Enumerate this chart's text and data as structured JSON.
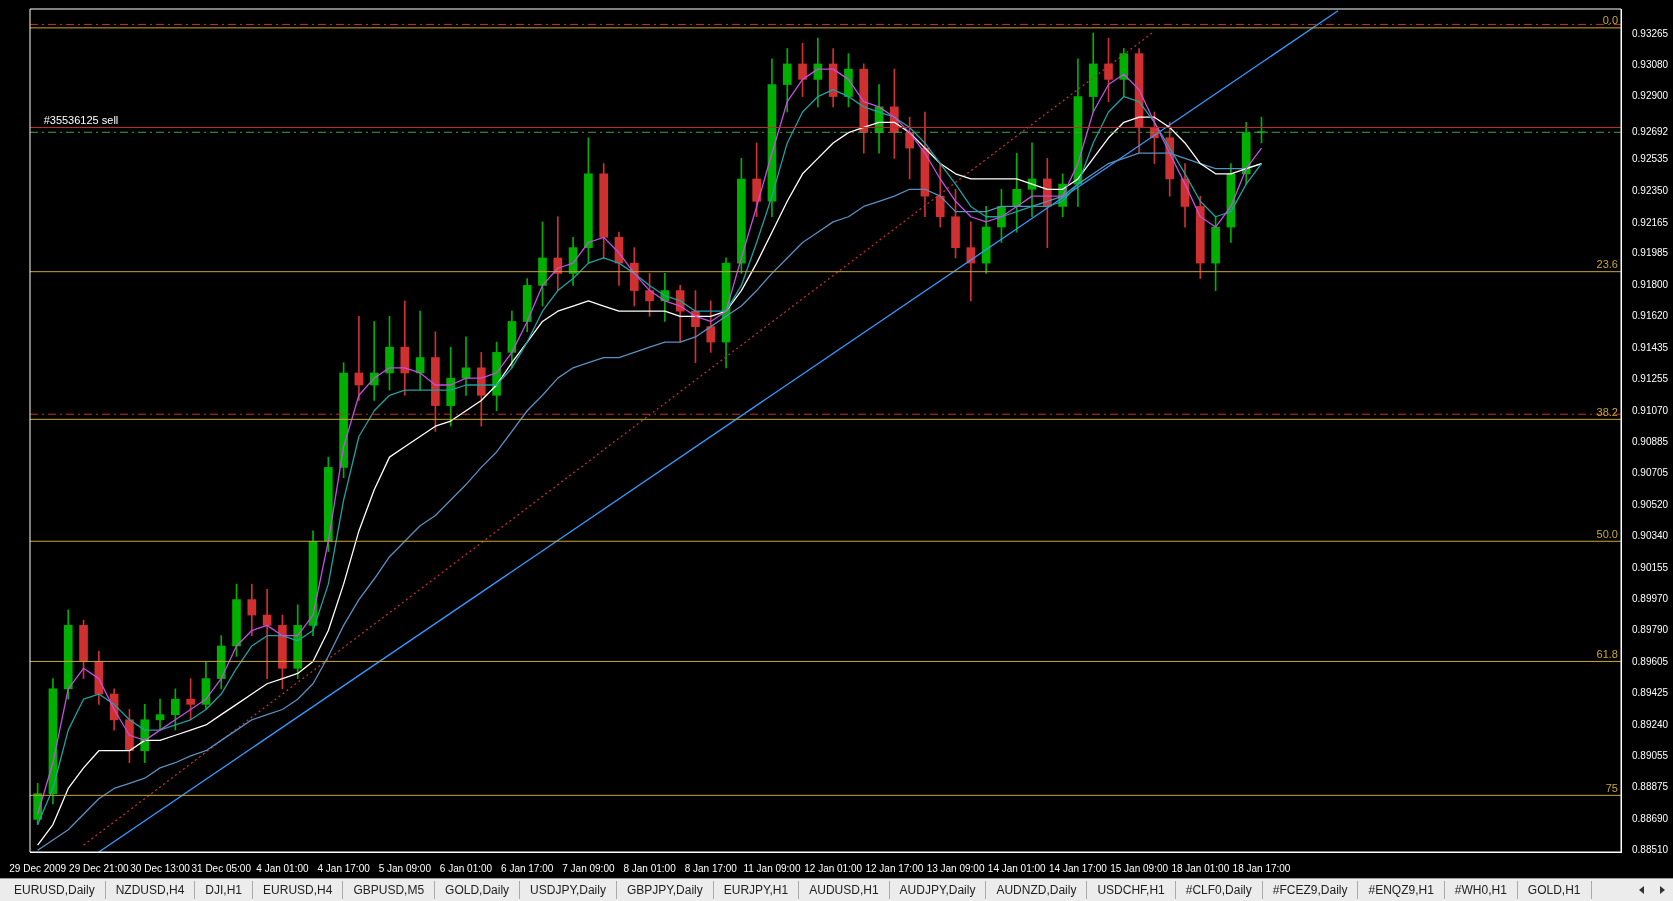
{
  "chart_data": {
    "type": "candlestick",
    "categories": [
      "29 Dec 2009",
      null,
      null,
      null,
      "29 Dec 21:00",
      null,
      null,
      null,
      "30 Dec 13:00",
      null,
      null,
      null,
      "31 Dec 05:00",
      null,
      null,
      null,
      "4 Jan 01:00",
      null,
      null,
      null,
      "4 Jan 17:00",
      null,
      null,
      null,
      "5 Jan 09:00",
      null,
      null,
      null,
      "6 Jan 01:00",
      null,
      null,
      null,
      "6 Jan 17:00",
      null,
      null,
      null,
      "7 Jan 09:00",
      null,
      null,
      null,
      "8 Jan 01:00",
      null,
      null,
      null,
      "8 Jan 17:00",
      null,
      null,
      null,
      "11 Jan 09:00",
      null,
      null,
      null,
      "12 Jan 01:00",
      null,
      null,
      null,
      "12 Jan 17:00",
      null,
      null,
      null,
      "13 Jan 09:00",
      null,
      null,
      null,
      "14 Jan 01:00",
      null,
      null,
      null,
      "14 Jan 17:00",
      null,
      null,
      null,
      "15 Jan 09:00",
      null,
      null,
      null,
      "18 Jan 01:00",
      null,
      null,
      null,
      "18 Jan 17:00",
      null,
      null,
      null,
      null,
      null,
      null,
      null,
      null,
      null,
      null,
      null,
      null,
      null,
      null,
      null,
      null,
      null,
      null,
      null,
      null,
      null,
      null,
      null
    ],
    "ohlc": [
      [
        0.8869,
        0.889,
        0.8866,
        0.8884
      ],
      [
        0.8884,
        0.8951,
        0.8878,
        0.8945
      ],
      [
        0.8945,
        0.8991,
        0.8939,
        0.8982
      ],
      [
        0.8982,
        0.8985,
        0.8951,
        0.8961
      ],
      [
        0.8961,
        0.8967,
        0.8936,
        0.8942
      ],
      [
        0.8942,
        0.8945,
        0.8921,
        0.8927
      ],
      [
        0.8927,
        0.8933,
        0.8902,
        0.8909
      ],
      [
        0.8909,
        0.8936,
        0.8902,
        0.8927
      ],
      [
        0.8927,
        0.8939,
        0.8921,
        0.893
      ],
      [
        0.893,
        0.8945,
        0.8921,
        0.8939
      ],
      [
        0.8939,
        0.8951,
        0.8927,
        0.8936
      ],
      [
        0.8936,
        0.8961,
        0.8933,
        0.8951
      ],
      [
        0.8951,
        0.8976,
        0.8945,
        0.897
      ],
      [
        0.897,
        0.9006,
        0.8964,
        0.8997
      ],
      [
        0.8997,
        0.9006,
        0.8976,
        0.8988
      ],
      [
        0.8988,
        0.9003,
        0.8951,
        0.8982
      ],
      [
        0.8982,
        0.8988,
        0.8945,
        0.8957
      ],
      [
        0.8957,
        0.8994,
        0.8951,
        0.8982
      ],
      [
        0.8982,
        0.9037,
        0.8976,
        0.9031
      ],
      [
        0.9031,
        0.908,
        0.9025,
        0.9074
      ],
      [
        0.9074,
        0.9135,
        0.9068,
        0.9129
      ],
      [
        0.9129,
        0.9162,
        0.9113,
        0.9122
      ],
      [
        0.9122,
        0.9159,
        0.9113,
        0.9129
      ],
      [
        0.9129,
        0.9162,
        0.9119,
        0.9144
      ],
      [
        0.9144,
        0.9171,
        0.9116,
        0.9129
      ],
      [
        0.9129,
        0.9165,
        0.9119,
        0.9138
      ],
      [
        0.9138,
        0.9153,
        0.9095,
        0.911
      ],
      [
        0.911,
        0.9144,
        0.9098,
        0.9126
      ],
      [
        0.9126,
        0.915,
        0.9116,
        0.9132
      ],
      [
        0.9132,
        0.9141,
        0.9098,
        0.9116
      ],
      [
        0.9116,
        0.9147,
        0.9107,
        0.9141
      ],
      [
        0.9141,
        0.9165,
        0.9132,
        0.9159
      ],
      [
        0.9159,
        0.9184,
        0.9153,
        0.918
      ],
      [
        0.918,
        0.9217,
        0.9168,
        0.9196
      ],
      [
        0.9196,
        0.922,
        0.9177,
        0.9187
      ],
      [
        0.9187,
        0.9208,
        0.918,
        0.9202
      ],
      [
        0.9202,
        0.9266,
        0.9193,
        0.9245
      ],
      [
        0.9245,
        0.9251,
        0.9196,
        0.9208
      ],
      [
        0.9208,
        0.9211,
        0.918,
        0.9193
      ],
      [
        0.9193,
        0.9202,
        0.9168,
        0.9177
      ],
      [
        0.9177,
        0.9187,
        0.9162,
        0.9171
      ],
      [
        0.9171,
        0.9187,
        0.9159,
        0.9177
      ],
      [
        0.9177,
        0.918,
        0.9147,
        0.9165
      ],
      [
        0.9165,
        0.9177,
        0.9135,
        0.9156
      ],
      [
        0.9156,
        0.9171,
        0.9141,
        0.9147
      ],
      [
        0.9147,
        0.9196,
        0.9132,
        0.9193
      ],
      [
        0.9193,
        0.9254,
        0.9187,
        0.9242
      ],
      [
        0.9242,
        0.9263,
        0.922,
        0.9229
      ],
      [
        0.9229,
        0.9312,
        0.922,
        0.9297
      ],
      [
        0.9297,
        0.9318,
        0.9281,
        0.9309
      ],
      [
        0.9309,
        0.9321,
        0.929,
        0.93
      ],
      [
        0.93,
        0.9324,
        0.9284,
        0.9309
      ],
      [
        0.9309,
        0.9318,
        0.9284,
        0.929
      ],
      [
        0.929,
        0.9315,
        0.9284,
        0.9306
      ],
      [
        0.9306,
        0.9309,
        0.9257,
        0.9269
      ],
      [
        0.9269,
        0.9297,
        0.9257,
        0.9284
      ],
      [
        0.9284,
        0.9306,
        0.9254,
        0.9269
      ],
      [
        0.9269,
        0.9278,
        0.9242,
        0.926
      ],
      [
        0.926,
        0.9281,
        0.922,
        0.9232
      ],
      [
        0.9232,
        0.9251,
        0.9214,
        0.922
      ],
      [
        0.922,
        0.9236,
        0.9196,
        0.9202
      ],
      [
        0.9202,
        0.9217,
        0.9171,
        0.9193
      ],
      [
        0.9193,
        0.9226,
        0.9187,
        0.9214
      ],
      [
        0.9214,
        0.9236,
        0.9205,
        0.9226
      ],
      [
        0.9226,
        0.9257,
        0.9211,
        0.9236
      ],
      [
        0.9236,
        0.9263,
        0.922,
        0.9242
      ],
      [
        0.9242,
        0.9254,
        0.9202,
        0.9226
      ],
      [
        0.9226,
        0.9245,
        0.922,
        0.9239
      ],
      [
        0.9239,
        0.9312,
        0.9226,
        0.929
      ],
      [
        0.929,
        0.9327,
        0.9281,
        0.9309
      ],
      [
        0.9309,
        0.9324,
        0.9287,
        0.93
      ],
      [
        0.93,
        0.9318,
        0.929,
        0.9315
      ],
      [
        0.9315,
        0.9318,
        0.9257,
        0.9272
      ],
      [
        0.9272,
        0.9281,
        0.9251,
        0.9266
      ],
      [
        0.9266,
        0.9275,
        0.9232,
        0.9242
      ],
      [
        0.9242,
        0.9251,
        0.9214,
        0.9226
      ],
      [
        0.9226,
        0.9232,
        0.9184,
        0.9193
      ],
      [
        0.9193,
        0.922,
        0.9177,
        0.9214
      ],
      [
        0.9214,
        0.9251,
        0.9205,
        0.9245
      ],
      [
        0.9245,
        0.9275,
        0.9239,
        0.9269
      ],
      [
        0.9269,
        0.9278,
        0.9263,
        0.9269
      ],
      null,
      null,
      null,
      null,
      null,
      null,
      null,
      null,
      null,
      null,
      null,
      null,
      null,
      null,
      null,
      null,
      null,
      null,
      null,
      null,
      null,
      null,
      null
    ],
    "series": [
      {
        "type": "line",
        "color": "#c050e0",
        "values": [
          0.8872,
          0.8902,
          0.8945,
          0.8957,
          0.8951,
          0.8933,
          0.8918,
          0.8915,
          0.8921,
          0.8927,
          0.8933,
          0.8939,
          0.8951,
          0.897,
          0.8979,
          0.8982,
          0.8976,
          0.8976,
          0.8988,
          0.9031,
          0.9086,
          0.9116,
          0.9126,
          0.9132,
          0.9132,
          0.9129,
          0.9122,
          0.9122,
          0.9126,
          0.9126,
          0.9129,
          0.9141,
          0.9159,
          0.918,
          0.919,
          0.9193,
          0.9205,
          0.9208,
          0.9199,
          0.9187,
          0.9177,
          0.9171,
          0.9168,
          0.9162,
          0.9159,
          0.9165,
          0.9196,
          0.9226,
          0.9257,
          0.9287,
          0.93,
          0.9306,
          0.9306,
          0.93,
          0.9287,
          0.9284,
          0.9278,
          0.9269,
          0.9257,
          0.9242,
          0.9229,
          0.922,
          0.9217,
          0.922,
          0.9226,
          0.9232,
          0.9232,
          0.9232,
          0.9251,
          0.9281,
          0.9297,
          0.9303,
          0.9294,
          0.9275,
          0.9257,
          0.9239,
          0.922,
          0.9214,
          0.9226,
          0.9248,
          0.926,
          null,
          null,
          null,
          null,
          null,
          null,
          null,
          null,
          null,
          null,
          null,
          null,
          null,
          null,
          null,
          null,
          null,
          null,
          null,
          null,
          null,
          null,
          null
        ]
      },
      {
        "type": "line",
        "color": "#20a0a0",
        "values": [
          0.8866,
          0.8887,
          0.8921,
          0.8939,
          0.8942,
          0.8936,
          0.8927,
          0.8921,
          0.8921,
          0.8924,
          0.8927,
          0.8933,
          0.8942,
          0.8957,
          0.897,
          0.8976,
          0.8976,
          0.8973,
          0.8979,
          0.9006,
          0.9055,
          0.9092,
          0.9107,
          0.9116,
          0.9119,
          0.9119,
          0.9119,
          0.9119,
          0.9122,
          0.9122,
          0.9122,
          0.9132,
          0.9147,
          0.9165,
          0.9177,
          0.9184,
          0.9193,
          0.9196,
          0.9193,
          0.9187,
          0.918,
          0.9174,
          0.9171,
          0.9165,
          0.9165,
          0.9165,
          0.918,
          0.9205,
          0.9232,
          0.9263,
          0.9281,
          0.929,
          0.9294,
          0.929,
          0.9284,
          0.9281,
          0.9278,
          0.9272,
          0.9263,
          0.9251,
          0.9239,
          0.9226,
          0.922,
          0.922,
          0.9223,
          0.9226,
          0.9226,
          0.9229,
          0.9239,
          0.9263,
          0.9281,
          0.929,
          0.9287,
          0.9275,
          0.926,
          0.9245,
          0.9229,
          0.922,
          0.9223,
          0.9239,
          0.9251,
          null,
          null,
          null,
          null,
          null,
          null,
          null,
          null,
          null,
          null,
          null,
          null,
          null,
          null,
          null,
          null,
          null,
          null,
          null,
          null,
          null,
          null,
          null
        ]
      },
      {
        "type": "line",
        "color": "#ffffff",
        "values": [
          0.8854,
          0.8866,
          0.8887,
          0.8899,
          0.8909,
          0.8909,
          0.8909,
          0.8915,
          0.8915,
          0.8918,
          0.8921,
          0.8924,
          0.893,
          0.8936,
          0.8942,
          0.8948,
          0.8951,
          0.8954,
          0.8961,
          0.8979,
          0.9006,
          0.9037,
          0.9061,
          0.908,
          0.9086,
          0.9092,
          0.9098,
          0.9101,
          0.9107,
          0.9113,
          0.9122,
          0.9135,
          0.9147,
          0.9159,
          0.9165,
          0.9168,
          0.9171,
          0.9168,
          0.9165,
          0.9165,
          0.9165,
          0.9165,
          0.9162,
          0.9162,
          0.9162,
          0.9165,
          0.9177,
          0.9193,
          0.9211,
          0.9229,
          0.9245,
          0.9254,
          0.9263,
          0.9269,
          0.9272,
          0.9275,
          0.9275,
          0.9269,
          0.926,
          0.9251,
          0.9245,
          0.9242,
          0.9242,
          0.9242,
          0.9242,
          0.9239,
          0.9236,
          0.9236,
          0.9242,
          0.9254,
          0.9266,
          0.9275,
          0.9278,
          0.9278,
          0.9272,
          0.9263,
          0.9251,
          0.9245,
          0.9245,
          0.9248,
          0.9251,
          null,
          null,
          null,
          null,
          null,
          null,
          null,
          null,
          null,
          null,
          null,
          null,
          null,
          null,
          null,
          null,
          null,
          null,
          null,
          null,
          null,
          null,
          null
        ]
      },
      {
        "type": "line",
        "color": "#5a8fc0",
        "values": [
          0.8851,
          0.8857,
          0.8863,
          0.8872,
          0.8881,
          0.8887,
          0.889,
          0.8893,
          0.8899,
          0.8902,
          0.8906,
          0.8909,
          0.8915,
          0.8921,
          0.8927,
          0.893,
          0.8933,
          0.8939,
          0.8948,
          0.8964,
          0.8982,
          0.8997,
          0.9009,
          0.9022,
          0.9031,
          0.904,
          0.9046,
          0.9055,
          0.9064,
          0.9074,
          0.9083,
          0.9095,
          0.9107,
          0.9116,
          0.9126,
          0.9132,
          0.9135,
          0.9138,
          0.9138,
          0.9141,
          0.9144,
          0.9147,
          0.9147,
          0.915,
          0.9156,
          0.9162,
          0.9168,
          0.9177,
          0.9187,
          0.9196,
          0.9205,
          0.9211,
          0.9217,
          0.922,
          0.9226,
          0.9229,
          0.9232,
          0.9236,
          0.9236,
          0.9232,
          0.9223,
          0.9223,
          0.9223,
          0.9226,
          0.9226,
          0.9226,
          0.9229,
          0.9232,
          0.9239,
          0.9245,
          0.9251,
          0.9254,
          0.9257,
          0.9257,
          0.9257,
          0.9254,
          0.9251,
          0.9248,
          0.9248,
          0.9248,
          0.9251,
          null,
          null,
          null,
          null,
          null,
          null,
          null,
          null,
          null,
          null,
          null,
          null,
          null,
          null,
          null,
          null,
          null,
          null,
          null,
          null,
          null,
          null,
          null
        ]
      },
      {
        "type": "line",
        "color": "#3399ff",
        "values": [
          null,
          null,
          null,
          null,
          0.885,
          null,
          null,
          null,
          null,
          null,
          null,
          null,
          null,
          null,
          null,
          null,
          null,
          null,
          null,
          null,
          null,
          null,
          null,
          null,
          null,
          null,
          null,
          null,
          null,
          null,
          null,
          null,
          null,
          null,
          null,
          null,
          null,
          null,
          null,
          null,
          null,
          null,
          null,
          null,
          null,
          null,
          null,
          null,
          null,
          null,
          null,
          null,
          null,
          null,
          null,
          null,
          null,
          null,
          null,
          null,
          null,
          null,
          null,
          null,
          null,
          null,
          null,
          null,
          null,
          null,
          null,
          null,
          null,
          null,
          null,
          null,
          null,
          null,
          null,
          null,
          null,
          null,
          null,
          null,
          null,
          0.934,
          null,
          null,
          null,
          null,
          null,
          null,
          null,
          null,
          null,
          null,
          null,
          null,
          null,
          null,
          null,
          null,
          null,
          null
        ]
      },
      {
        "type": "line",
        "color": "#c03030",
        "line_style": "dotted",
        "values": [
          null,
          null,
          null,
          0.8854,
          null,
          null,
          null,
          null,
          null,
          null,
          null,
          null,
          null,
          null,
          null,
          null,
          null,
          null,
          null,
          null,
          null,
          null,
          null,
          null,
          null,
          null,
          null,
          null,
          null,
          null,
          null,
          null,
          null,
          null,
          null,
          null,
          null,
          null,
          null,
          null,
          null,
          null,
          null,
          null,
          null,
          null,
          null,
          null,
          null,
          null,
          null,
          null,
          null,
          null,
          null,
          null,
          null,
          null,
          null,
          null,
          null,
          null,
          null,
          null,
          null,
          null,
          null,
          null,
          null,
          null,
          null,
          null,
          null,
          0.9328,
          null,
          null,
          null,
          null,
          null,
          null,
          null,
          null,
          null,
          null,
          null,
          null,
          null,
          null,
          null,
          null,
          null,
          null,
          null,
          null,
          null,
          null,
          null,
          null,
          null,
          null,
          null,
          null,
          null,
          null
        ]
      }
    ],
    "ylim": [
      0.885,
      0.9341
    ],
    "yticks": [
      {
        "value": 0.93265,
        "label": "0.93265"
      },
      {
        "value": 0.9308,
        "label": "0.93080"
      },
      {
        "value": 0.929,
        "label": "0.92900"
      },
      {
        "value": 0.92692,
        "label": "0.92692"
      },
      {
        "value": 0.92535,
        "label": "0.92535"
      },
      {
        "value": 0.9235,
        "label": "0.92350"
      },
      {
        "value": 0.92165,
        "label": "0.92165"
      },
      {
        "value": 0.91985,
        "label": "0.91985"
      },
      {
        "value": 0.918,
        "label": "0.91800"
      },
      {
        "value": 0.9162,
        "label": "0.91620"
      },
      {
        "value": 0.91435,
        "label": "0.91435"
      },
      {
        "value": 0.91255,
        "label": "0.91255"
      },
      {
        "value": 0.9107,
        "label": "0.91070"
      },
      {
        "value": 0.90885,
        "label": "0.90885"
      },
      {
        "value": 0.90705,
        "label": "0.90705"
      },
      {
        "value": 0.9052,
        "label": "0.90520"
      },
      {
        "value": 0.9034,
        "label": "0.90340"
      },
      {
        "value": 0.90155,
        "label": "0.90155"
      },
      {
        "value": 0.8997,
        "label": "0.89970"
      },
      {
        "value": 0.8979,
        "label": "0.89790"
      },
      {
        "value": 0.89605,
        "label": "0.89605"
      },
      {
        "value": 0.89425,
        "label": "0.89425"
      },
      {
        "value": 0.8924,
        "label": "0.89240"
      },
      {
        "value": 0.89055,
        "label": "0.89055"
      },
      {
        "value": 0.88875,
        "label": "0.88875"
      },
      {
        "value": 0.8869,
        "label": "0.88690"
      },
      {
        "value": 0.8851,
        "label": "0.88510"
      }
    ],
    "ref_lines": [
      {
        "axis": "y",
        "value": 0.9332,
        "label": null,
        "color": "#c03030",
        "line_style": "dashed"
      },
      {
        "axis": "y",
        "value": 0.933,
        "label": null,
        "color": "#c8a832"
      },
      {
        "axis": "y",
        "value": 0.9272,
        "label": null,
        "color": "#c03030"
      },
      {
        "axis": "y",
        "value": 0.92692,
        "label": null,
        "color": "#40a040",
        "line_style": "dashed"
      },
      {
        "axis": "y",
        "value": 0.9188,
        "label": null,
        "color": "#c8a832"
      },
      {
        "axis": "y",
        "value": 0.9105,
        "label": null,
        "color": "#c03030",
        "line_style": "dashed"
      },
      {
        "axis": "y",
        "value": 0.9102,
        "label": null,
        "color": "#c8a832"
      },
      {
        "axis": "y",
        "value": 0.9031,
        "label": null,
        "color": "#c8a832"
      },
      {
        "axis": "y",
        "value": 0.8961,
        "label": null,
        "color": "#c8a832"
      },
      {
        "axis": "y",
        "value": 0.8883,
        "label": null,
        "color": "#c8a832"
      }
    ],
    "annotations": [
      {
        "text": "#35536125 sell",
        "x": "29 Dec 2009",
        "y": 0.9272
      },
      {
        "text": "0.0",
        "y": 0.933
      },
      {
        "text": "23.6",
        "y": 0.9188
      },
      {
        "text": "38.2",
        "y": 0.9102
      },
      {
        "text": "50.0",
        "y": 0.9031
      },
      {
        "text": "61.8",
        "y": 0.8961
      },
      {
        "text": "75",
        "y": 0.8883
      },
      "EURUSD,Daily",
      "NZDUSD,H4",
      "DJI,H1",
      "EURUSD,H4",
      "GBPUSD,M5",
      "GOLD,Daily",
      "USDJPY,Daily",
      "GBPJPY,Daily",
      "EURJPY,H1",
      "AUDUSD,H1",
      "AUDJPY,Daily",
      "AUDNZD,Daily",
      "USDCHF,H1",
      "#CLF0,Daily",
      "#FCEZ9,Daily",
      "#ENQZ9,H1",
      "#WH0,H1",
      "GOLD,H1"
    ],
    "grid": false,
    "legend": false
  }
}
